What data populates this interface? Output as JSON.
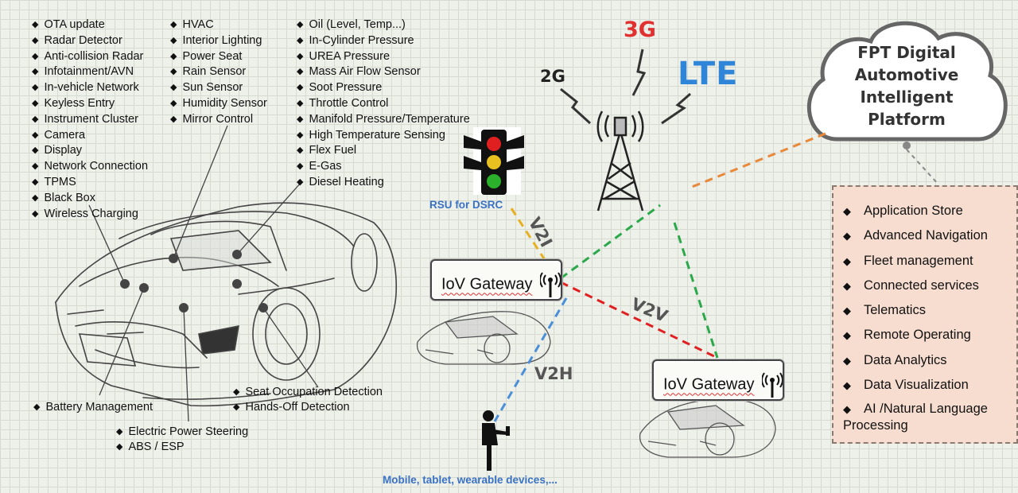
{
  "features": {
    "col1": [
      "OTA update",
      "Radar Detector",
      "Anti-collision Radar",
      "Infotainment/AVN",
      "In-vehicle Network",
      "Keyless Entry",
      "Instrument Cluster",
      "Camera",
      "Display",
      "Network Connection",
      "TPMS",
      "Black Box",
      "Wireless Charging"
    ],
    "col2": [
      "HVAC",
      "Interior Lighting",
      "Power Seat",
      "Rain Sensor",
      "Sun Sensor",
      "Humidity Sensor",
      "Mirror Control"
    ],
    "col3": [
      "Oil (Level, Temp...)",
      "In-Cylinder Pressure",
      "UREA Pressure",
      "Mass Air Flow Sensor",
      "Soot Pressure",
      "Throttle Control",
      "Manifold Pressure/Temperature",
      "High Temperature Sensing",
      "Flex Fuel",
      "E-Gas",
      "Diesel Heating"
    ]
  },
  "bottom_labels": {
    "battery": "Battery Management",
    "steering": "Electric Power Steering",
    "abs": "ABS / ESP",
    "seat": "Seat Occupation Detection",
    "hands": "Hands-Off Detection"
  },
  "network": {
    "g2": "2G",
    "g3": "3G",
    "lte": "LTE",
    "rsu": "RSU for DSRC",
    "mobile": "Mobile, tablet, wearable devices,...",
    "v2i": "V2I",
    "v2v": "V2V",
    "v2h": "V2H",
    "gateway1": "IoV Gateway",
    "gateway2": "IoV Gateway"
  },
  "cloud": {
    "line1": "FPT Digital",
    "line2": "Automotive",
    "line3": "Intelligent",
    "line4": "Platform"
  },
  "services": [
    "Application Store",
    "Advanced Navigation",
    "Fleet management",
    "Connected services",
    "Telematics",
    "Remote Operating",
    "Data Analytics",
    "Data Visualization",
    "AI /Natural Language Processing"
  ],
  "colors": {
    "v2i": "#e6b020",
    "v2v": "#e02020",
    "v2h": "#4a8fd8",
    "lte_link": "#2aa84a",
    "cloud_link": "#e8883a",
    "g3": "#e03030",
    "lte": "#2f86d8",
    "note": "#3a72c4"
  }
}
